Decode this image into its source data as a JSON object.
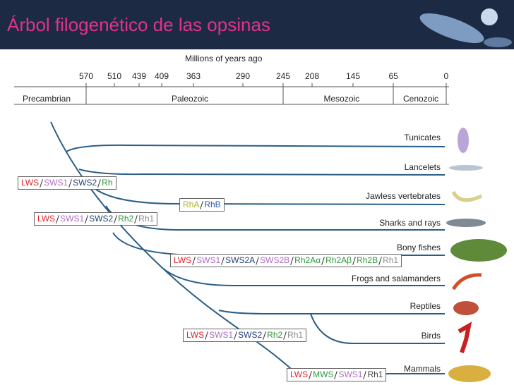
{
  "header": {
    "title": "Árbol filogenético de las opsinas"
  },
  "timeline": {
    "label": "Millions of years ago",
    "ticks": [
      570,
      510,
      439,
      409,
      363,
      290,
      245,
      208,
      145,
      65,
      0
    ],
    "eras": [
      "Precambrian",
      "Paleozoic",
      "Mesozoic",
      "Cenozoic"
    ]
  },
  "taxa": [
    "Tunicates",
    "Lancelets",
    "Jawless vertebrates",
    "Sharks and rays",
    "Bony fishes",
    "Frogs and salamanders",
    "Reptiles",
    "Birds",
    "Mammals"
  ],
  "opsin_groups": [
    [
      {
        "text": "LWS",
        "color": "#e0242a"
      },
      {
        "text": "SWS1",
        "color": "#b06ac0"
      },
      {
        "text": "SWS2",
        "color": "#23407a"
      },
      {
        "text": "Rh",
        "color": "#2d9a3a"
      }
    ],
    [
      {
        "text": "RhA",
        "color": "#a8b820"
      },
      {
        "text": "RhB",
        "color": "#2d5aa8"
      }
    ],
    [
      {
        "text": "LWS",
        "color": "#e0242a"
      },
      {
        "text": "SWS1",
        "color": "#b06ac0"
      },
      {
        "text": "SWS2",
        "color": "#23407a"
      },
      {
        "text": "Rh2",
        "color": "#2d9a3a"
      },
      {
        "text": "Rh1",
        "color": "#8a8a8a"
      }
    ],
    [
      {
        "text": "LWS",
        "color": "#e0242a"
      },
      {
        "text": "SWS1",
        "color": "#b06ac0"
      },
      {
        "text": "SWS2A",
        "color": "#23407a"
      },
      {
        "text": "SWS2B",
        "color": "#b06ac0"
      },
      {
        "text": "Rh2Aα",
        "color": "#2d9a3a"
      },
      {
        "text": "Rh2Aβ",
        "color": "#2d9a3a"
      },
      {
        "text": "Rh2B",
        "color": "#2d9a3a"
      },
      {
        "text": "Rh1",
        "color": "#8a8a8a"
      }
    ],
    [
      {
        "text": "LWS",
        "color": "#e0242a"
      },
      {
        "text": "SWS1",
        "color": "#b06ac0"
      },
      {
        "text": "SWS2",
        "color": "#23407a"
      },
      {
        "text": "Rh2",
        "color": "#2d9a3a"
      },
      {
        "text": "Rh1",
        "color": "#8a8a8a"
      }
    ],
    [
      {
        "text": "LWS",
        "color": "#e0242a"
      },
      {
        "text": "MWS",
        "color": "#2d9a3a"
      },
      {
        "text": "SWS1",
        "color": "#b06ac0"
      },
      {
        "text": "Rh1",
        "color": "#444444"
      }
    ]
  ]
}
